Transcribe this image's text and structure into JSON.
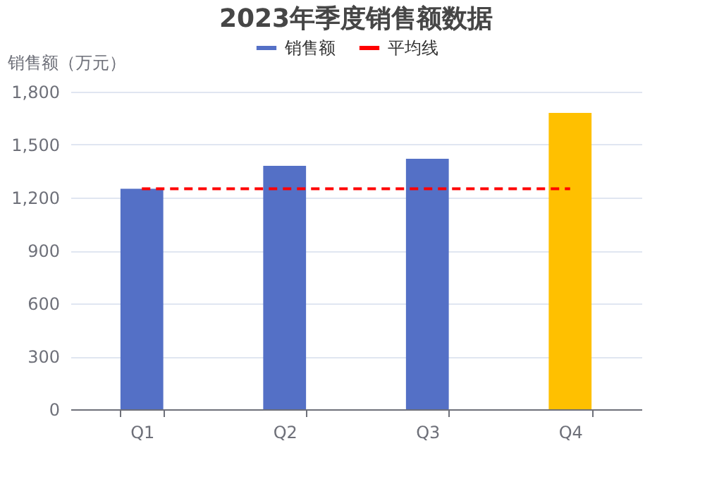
{
  "chart_data": {
    "type": "bar",
    "title": "2023年季度销售额数据",
    "ylabel": "销售额（万元）",
    "categories": [
      "Q1",
      "Q2",
      "Q3",
      "Q4"
    ],
    "series": [
      {
        "name": "销售额",
        "color": "#5470c6",
        "colors": [
          "#5470c6",
          "#5470c6",
          "#5470c6",
          "#ffc000"
        ],
        "values": [
          1250,
          1380,
          1420,
          1680
        ]
      },
      {
        "name": "平均线",
        "type": "line",
        "color": "#ff0000",
        "line_style": "dashed",
        "values": [
          1250,
          1250,
          1250,
          1250
        ]
      }
    ],
    "ylim": [
      0,
      1800
    ],
    "yticks": [
      0,
      300,
      600,
      900,
      {
        "value": 1200,
        "label": "1,200"
      },
      {
        "value": 1500,
        "label": "1,500"
      },
      {
        "value": 1800,
        "label": "1,800"
      }
    ],
    "grid": "y",
    "legend": "top"
  }
}
